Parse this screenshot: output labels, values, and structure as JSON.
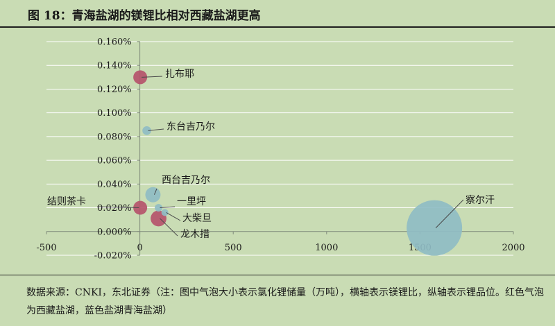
{
  "title": "图 18：青海盐湖的镁锂比相对西藏盐湖更高",
  "source_note": "数据来源：CNKI，东北证券（注：图中气泡大小表示氯化锂储量（万吨），横轴表示镁锂比，纵轴表示锂品位。红色气泡为西藏盐湖，蓝色盐湖青海盐湖）",
  "colors": {
    "background": "#c9dcb4",
    "grid": "#ffffff",
    "tibet_bubble": "#b5536b",
    "qinghai_bubble": "#8fbcc4",
    "text": "#1a1a1a"
  },
  "chart_data": {
    "type": "bubble",
    "xlim": [
      -500,
      2000
    ],
    "ylim": [
      -0.02,
      0.16
    ],
    "x_ticks": [
      "-500",
      "0",
      "500",
      "1000",
      "1500",
      "2000"
    ],
    "y_ticks": [
      "-0.020%",
      "0.000%",
      "0.020%",
      "0.040%",
      "0.060%",
      "0.080%",
      "0.100%",
      "0.120%",
      "0.140%",
      "0.160%"
    ],
    "grid": "horizontal",
    "series": [
      {
        "name": "西藏盐湖",
        "color": "#b5536b",
        "points": [
          {
            "label": "扎布耶",
            "x": 2,
            "y": 0.13,
            "size": 100
          },
          {
            "label": "结则茶卡",
            "x": 2,
            "y": 0.02,
            "size": 100
          },
          {
            "label": "龙木措",
            "x": 100,
            "y": 0.011,
            "size": 130
          }
        ]
      },
      {
        "name": "青海盐湖",
        "color": "#8fbcc4",
        "points": [
          {
            "label": "东台吉乃尔",
            "x": 37,
            "y": 0.085,
            "size": 40
          },
          {
            "label": "西台吉乃尔",
            "x": 70,
            "y": 0.031,
            "size": 120
          },
          {
            "label": "一里坪",
            "x": 100,
            "y": 0.02,
            "size": 30
          },
          {
            "label": "大柴旦",
            "x": 134,
            "y": 0.016,
            "size": 25
          },
          {
            "label": "察尔汗",
            "x": 1577,
            "y": 0.003,
            "size": 1600
          }
        ]
      }
    ]
  }
}
